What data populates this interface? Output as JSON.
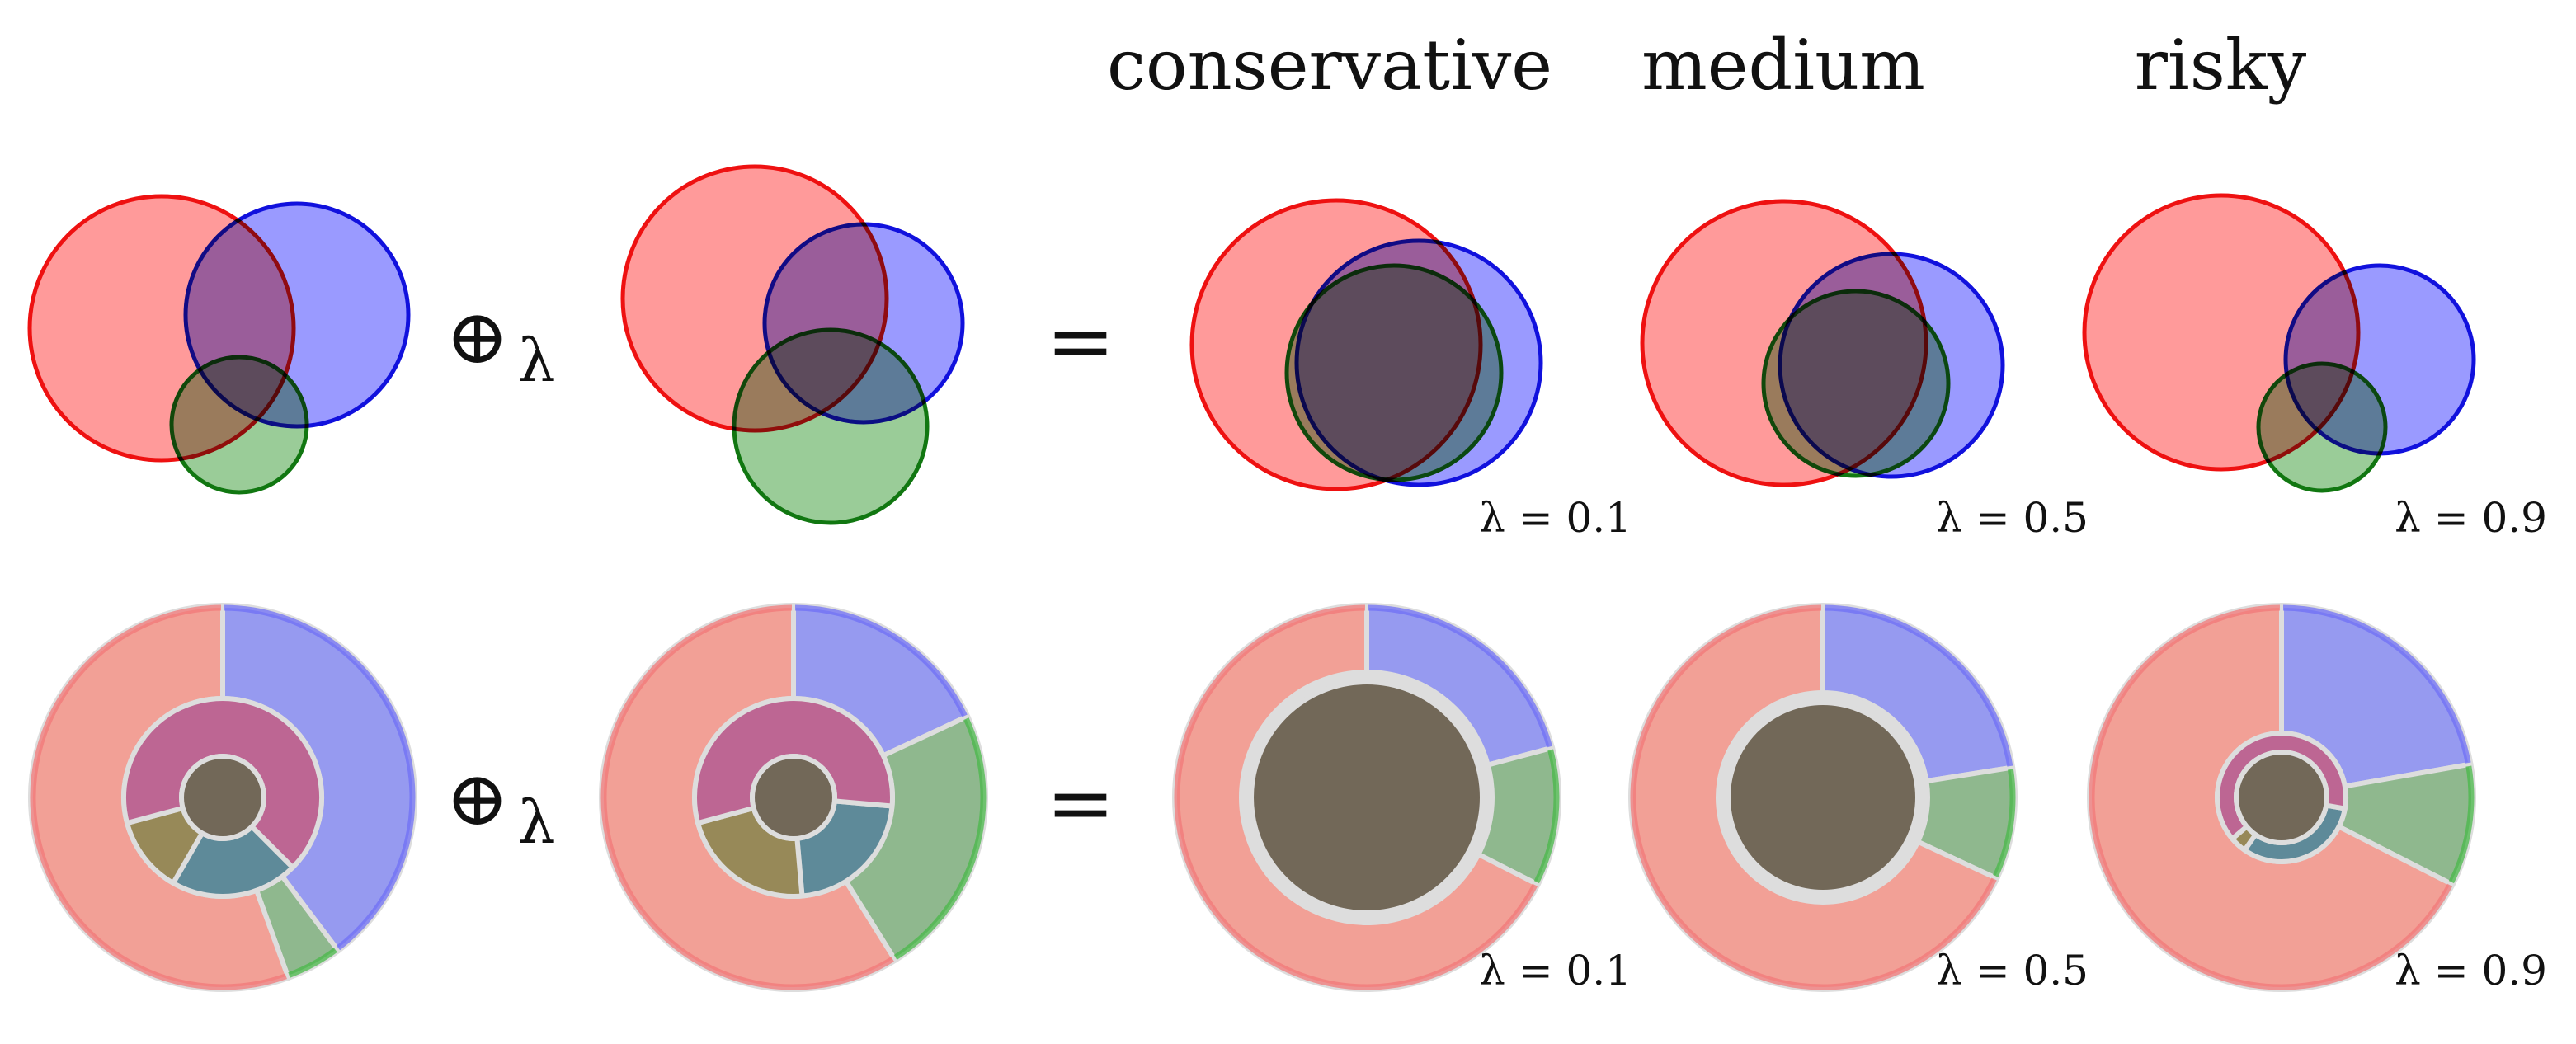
{
  "header": {
    "columns": [
      "conservative",
      "medium",
      "risky"
    ]
  },
  "operator": {
    "combine_symbol": "⊕",
    "combine_subscript": "λ",
    "equals": "="
  },
  "lambda_labels": [
    "λ = 0.1",
    "λ = 0.5",
    "λ = 0.9"
  ],
  "colors": {
    "red_fill": "#ff9a9a",
    "red_stroke": "#ee1111",
    "blue_fill": "#9a9aff",
    "blue_stroke": "#1111dd",
    "green_fill": "#9acc98",
    "green_stroke": "#117711",
    "wedge_red": "#f2a096",
    "wedge_blue": "#969af0",
    "wedge_green": "#8fb88e",
    "wedge_rb": "#bd6693",
    "wedge_rg": "#978958",
    "wedge_bg": "#5e8a99",
    "wedge_all": "#726858",
    "separator": "#dddddd"
  }
}
